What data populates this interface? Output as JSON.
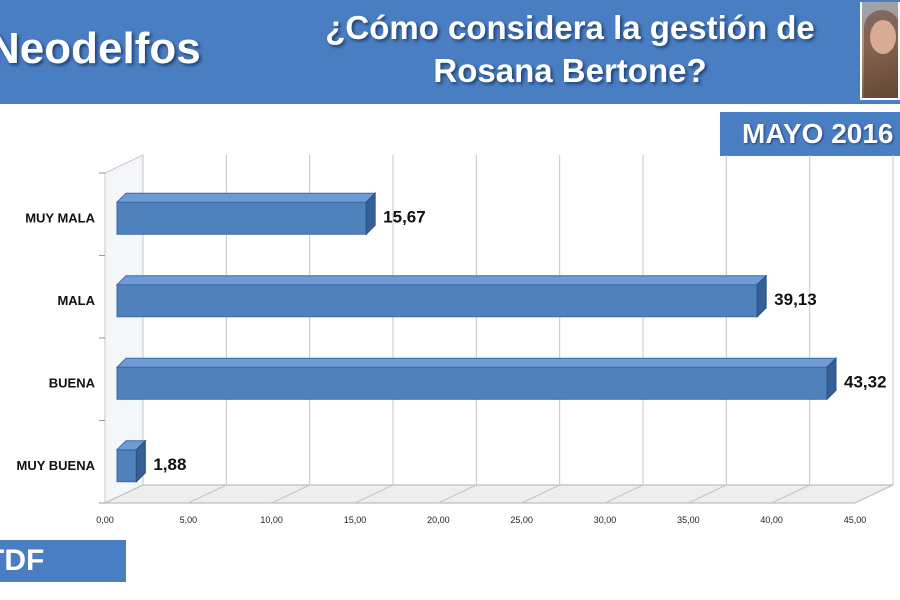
{
  "header": {
    "brand": "Neodelfos",
    "question_line1": "¿Cómo considera la gestión de",
    "question_line2": "Rosana Bertone?",
    "date_badge": "MAYO 2016",
    "source_badge": "TDF",
    "background_color": "#4a7ec3"
  },
  "chart_data": {
    "type": "bar",
    "orientation": "horizontal",
    "categories": [
      "MUY MALA",
      "MALA",
      "BUENA",
      "MUY BUENA"
    ],
    "values": [
      15.67,
      39.13,
      43.32,
      1.88
    ],
    "value_labels": [
      "15,67",
      "39,13",
      "43,32",
      "1,88"
    ],
    "xlim": [
      0,
      45
    ],
    "xticks": [
      "0,00",
      "5,00",
      "10,00",
      "15,00",
      "20,00",
      "25,00",
      "30,00",
      "35,00",
      "40,00",
      "45,00"
    ],
    "grid": "vertical",
    "bar_color": "#4f81bd",
    "title": "",
    "xlabel": "",
    "ylabel": ""
  }
}
